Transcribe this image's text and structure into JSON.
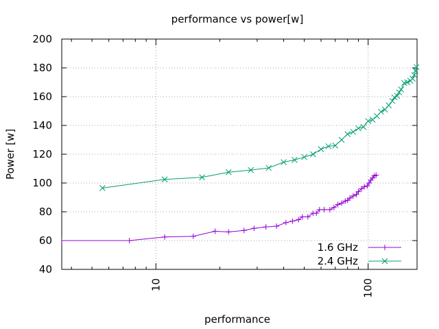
{
  "chart_data": {
    "type": "line",
    "title": "performance vs power[w]",
    "xlabel": "performance",
    "ylabel": "Power [w]",
    "xscale": "log",
    "xlim": [
      3.6,
      170
    ],
    "ylim": [
      40,
      200
    ],
    "xticks": [
      10,
      100
    ],
    "xtick_labels": [
      "10",
      "100"
    ],
    "yticks": [
      40,
      60,
      80,
      100,
      120,
      140,
      160,
      180,
      200
    ],
    "ytick_labels": [
      "40",
      "60",
      "80",
      "100",
      "120",
      "140",
      "160",
      "180",
      "200"
    ],
    "grid": true,
    "legend_position": "bottom-right",
    "series": [
      {
        "name": "1.6 GHz",
        "color": "#9400d3",
        "marker": "plus",
        "points": [
          [
            3.6,
            60
          ],
          [
            7.5,
            60
          ],
          [
            11,
            62.5
          ],
          [
            15,
            63
          ],
          [
            19,
            66.5
          ],
          [
            22,
            66
          ],
          [
            26,
            67
          ],
          [
            29,
            68.5
          ],
          [
            33,
            69.5
          ],
          [
            37,
            70
          ],
          [
            41,
            72.5
          ],
          [
            44,
            73.5
          ],
          [
            47,
            74.5
          ],
          [
            49,
            76.5
          ],
          [
            52,
            76.5
          ],
          [
            55,
            79
          ],
          [
            57,
            79
          ],
          [
            59,
            81.5
          ],
          [
            62,
            81.5
          ],
          [
            66,
            81.5
          ],
          [
            69,
            83
          ],
          [
            72,
            85
          ],
          [
            75,
            86
          ],
          [
            78,
            87.5
          ],
          [
            80,
            88
          ],
          [
            82,
            89.5
          ],
          [
            85,
            91
          ],
          [
            88,
            92
          ],
          [
            90,
            94
          ],
          [
            93,
            96
          ],
          [
            96,
            97.5
          ],
          [
            99,
            98
          ],
          [
            101,
            100
          ],
          [
            103,
            102
          ],
          [
            105,
            103.5
          ],
          [
            107,
            105
          ],
          [
            109,
            105.5
          ]
        ]
      },
      {
        "name": "2.4 GHz",
        "color": "#009e73",
        "marker": "cross",
        "points": [
          [
            5.6,
            96.5
          ],
          [
            11,
            102.5
          ],
          [
            16.5,
            104
          ],
          [
            22,
            107.5
          ],
          [
            28,
            109
          ],
          [
            34,
            110.5
          ],
          [
            40,
            114.5
          ],
          [
            45,
            116
          ],
          [
            50,
            118
          ],
          [
            55,
            120
          ],
          [
            60,
            123.5
          ],
          [
            65,
            125.5
          ],
          [
            70,
            126
          ],
          [
            75,
            130
          ],
          [
            80,
            134
          ],
          [
            85,
            135.5
          ],
          [
            90,
            138
          ],
          [
            95,
            139
          ],
          [
            100,
            143
          ],
          [
            105,
            144
          ],
          [
            110,
            146.5
          ],
          [
            115,
            149.5
          ],
          [
            120,
            151
          ],
          [
            125,
            154
          ],
          [
            130,
            157
          ],
          [
            133,
            159.5
          ],
          [
            137,
            160.5
          ],
          [
            140,
            163
          ],
          [
            143,
            165
          ],
          [
            148,
            169.5
          ],
          [
            153,
            170
          ],
          [
            158,
            171
          ],
          [
            162,
            172.5
          ],
          [
            165,
            175
          ],
          [
            167,
            178
          ],
          [
            169,
            180.5
          ]
        ]
      }
    ]
  }
}
